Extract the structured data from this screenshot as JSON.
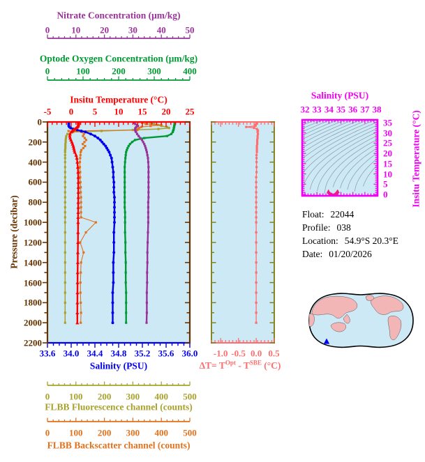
{
  "colors": {
    "plot_background": "#CDE9F6",
    "map_ocean": "#CDE9F6",
    "map_land": "#F2B6B6",
    "map_outline": "#000000",
    "map_marker": "#0000EE",
    "ts_contour": "#8899A6",
    "ts_point": "#EE2277"
  },
  "float_info": {
    "rows": [
      {
        "label": "Float:",
        "value": "22044"
      },
      {
        "label": "Profile:",
        "value": "038"
      },
      {
        "label": "Location:",
        "value": "54.9°S  20.3°E"
      },
      {
        "label": "Date:",
        "value": "01/20/2026"
      }
    ]
  },
  "axes": {
    "nitrate": {
      "title": "Nitrate Concentration (μm/kg)",
      "color": "#993399",
      "min": 0,
      "max": 50,
      "minor_step": 2,
      "tick_values": [
        0,
        10,
        20,
        30,
        40,
        50
      ],
      "tick_labels": [
        "0",
        "10",
        "20",
        "30",
        "40",
        "50"
      ]
    },
    "oxygen": {
      "title": "Optode Oxygen Concentration (μm/kg)",
      "color": "#009933",
      "min": 0,
      "max": 400,
      "minor_step": 20,
      "tick_values": [
        0,
        100,
        200,
        300,
        400
      ],
      "tick_labels": [
        "0",
        "100",
        "200",
        "300",
        "400"
      ]
    },
    "temperature": {
      "title": "Insitu Temperature (°C)",
      "color": "#FF0000",
      "min": -5,
      "max": 25,
      "minor_step": 1,
      "tick_values": [
        -5,
        0,
        5,
        10,
        15,
        20,
        25
      ],
      "tick_labels": [
        "-5",
        "0",
        "5",
        "10",
        "15",
        "20",
        "25"
      ]
    },
    "pressure": {
      "title": "Pressure (decibar)",
      "color": "#663300",
      "min": 0,
      "max": 2200,
      "minor_step": 100,
      "tick_values": [
        0,
        200,
        400,
        600,
        800,
        1000,
        1200,
        1400,
        1600,
        1800,
        2000,
        2200
      ],
      "tick_labels": [
        "0",
        "200",
        "400",
        "600",
        "800",
        "1000",
        "1200",
        "1400",
        "1600",
        "1800",
        "2000",
        "2200"
      ]
    },
    "salinity": {
      "title": "Salinity (PSU)",
      "color": "#0000EE",
      "min": 33.6,
      "max": 36.0,
      "minor_step": 0.1,
      "tick_values": [
        33.6,
        34.0,
        34.4,
        34.8,
        35.2,
        35.6,
        36.0
      ],
      "tick_labels": [
        "33.6",
        "34.0",
        "34.4",
        "34.8",
        "35.2",
        "35.6",
        "36.0"
      ]
    },
    "fluorescence": {
      "title": "FLBB Fluorescence channel (counts)",
      "color": "#A8A22C",
      "min": 0,
      "max": 500,
      "minor_step": 20,
      "tick_values": [
        0,
        100,
        200,
        300,
        400,
        500
      ],
      "tick_labels": [
        "0",
        "100",
        "200",
        "300",
        "400",
        "500"
      ]
    },
    "backscatter": {
      "title": "FLBB Backscatter channel (counts)",
      "color": "#E2711C",
      "min": 0,
      "max": 500,
      "minor_step": 20,
      "tick_values": [
        0,
        100,
        200,
        300,
        400,
        500
      ],
      "tick_labels": [
        "0",
        "100",
        "200",
        "300",
        "400",
        "500"
      ]
    },
    "delta_t": {
      "color": "#FF6E6E",
      "min": -1.26,
      "max": 0.51,
      "minor_step": 0.1,
      "tick_values": [
        -1.0,
        -0.5,
        0.0,
        0.5
      ],
      "tick_labels": [
        "-1.0",
        "-0.5",
        "0.0",
        "0.5"
      ],
      "title_parts": {
        "p1": "ΔT= T",
        "sup1": "Opt",
        "p2": " - T",
        "sup2": "SBE",
        "p3": " (°C)"
      }
    },
    "ts_salinity": {
      "title": "Salinity (PSU)",
      "color": "#F000F0",
      "min": 32,
      "max": 38,
      "minor_step": 0.25,
      "tick_values": [
        32,
        33,
        34,
        35,
        36,
        37,
        38
      ],
      "tick_labels": [
        "32",
        "33",
        "34",
        "35",
        "36",
        "37",
        "38"
      ]
    },
    "ts_temperature": {
      "title": "Insitu Temperature (°C)",
      "color": "#F000F0",
      "min": 0,
      "max": 35,
      "minor_step": 1,
      "tick_values": [
        0,
        5,
        10,
        15,
        20,
        25,
        30,
        35
      ],
      "tick_labels": [
        "0",
        "5",
        "10",
        "15",
        "20",
        "25",
        "30",
        "35"
      ]
    }
  },
  "chart_data": {
    "type": "line",
    "description": "Float vertical profiles plotted against pressure (decibar), plus optode-minus-SBE temperature difference panel and a T-S diagram with isopycnal contours.",
    "pressure_levels": [
      0,
      10,
      20,
      30,
      40,
      50,
      60,
      70,
      80,
      90,
      100,
      120,
      140,
      160,
      180,
      200,
      220,
      240,
      260,
      280,
      300,
      330,
      360,
      400,
      450,
      500,
      550,
      600,
      650,
      700,
      750,
      800,
      850,
      900,
      950,
      1000,
      1100,
      1200,
      1300,
      1400,
      1500,
      1600,
      1700,
      1800,
      1900,
      2000
    ],
    "series": [
      {
        "name": "Insitu Temperature",
        "axis": "temperature",
        "color": "#FF0000",
        "marker": "triangle",
        "lw": 2.4,
        "values": [
          1.55,
          1.55,
          1.55,
          1.52,
          1.45,
          1.3,
          1.05,
          0.75,
          0.45,
          0.2,
          0.0,
          -0.25,
          -0.3,
          -0.2,
          -0.05,
          0.15,
          0.3,
          0.45,
          0.55,
          0.65,
          0.75,
          1.05,
          1.2,
          1.3,
          1.4,
          1.45,
          1.48,
          1.5,
          1.5,
          1.5,
          1.5,
          1.49,
          1.48,
          1.47,
          1.46,
          1.45,
          1.44,
          1.42,
          1.4,
          1.38,
          1.36,
          1.34,
          1.32,
          1.31,
          1.3,
          1.29
        ]
      },
      {
        "name": "Salinity",
        "axis": "salinity",
        "color": "#0000EE",
        "marker": "circle",
        "lw": 2.4,
        "values": [
          33.96,
          33.96,
          33.96,
          33.96,
          33.96,
          33.97,
          33.99,
          34.03,
          34.1,
          34.17,
          34.24,
          34.33,
          34.4,
          34.45,
          34.49,
          34.52,
          34.55,
          34.58,
          34.6,
          34.62,
          34.64,
          34.66,
          34.68,
          34.69,
          34.7,
          34.71,
          34.71,
          34.72,
          34.72,
          34.72,
          34.73,
          34.73,
          34.73,
          34.73,
          34.73,
          34.73,
          34.72,
          34.72,
          34.72,
          34.71,
          34.71,
          34.71,
          34.7,
          34.7,
          34.7,
          34.7
        ]
      },
      {
        "name": "Optode Oxygen Concentration",
        "axis": "oxygen",
        "color": "#009933",
        "marker": "square",
        "lw": 2.4,
        "values": [
          358,
          358,
          357,
          357,
          356,
          356,
          355,
          355,
          354,
          353,
          352,
          348,
          336,
          272,
          246,
          238,
          232,
          228,
          225,
          223,
          221,
          220,
          219,
          218,
          217,
          217,
          217,
          217,
          217,
          217,
          217,
          217,
          217,
          218,
          218,
          218,
          218,
          219,
          219,
          220,
          220,
          220,
          221,
          221,
          221,
          221
        ]
      },
      {
        "name": "Nitrate Concentration",
        "axis": "nitrate",
        "color": "#993399",
        "marker": "square",
        "lw": 2.4,
        "values": [
          30.3,
          30.4,
          30.8,
          31.5,
          31.8,
          31.2,
          30.9,
          30.8,
          30.8,
          30.9,
          31.1,
          31.5,
          32.0,
          32.6,
          33.2,
          33.6,
          34.0,
          34.3,
          34.5,
          34.7,
          34.9,
          35.1,
          35.3,
          35.4,
          35.5,
          35.5,
          35.5,
          35.5,
          35.5,
          35.5,
          35.5,
          35.4,
          35.4,
          35.4,
          35.4,
          35.4,
          35.3,
          35.2,
          35.1,
          35.1,
          35.0,
          35.0,
          34.9,
          34.9,
          34.9,
          34.8
        ]
      },
      {
        "name": "FLBB Fluorescence channel",
        "axis": "fluorescence",
        "color": "#A8A22C",
        "marker": "square",
        "lw": 1.5,
        "values": [
          350,
          362,
          375,
          388,
          400,
          420,
          427,
          390,
          300,
          190,
          90,
          70,
          66,
          65,
          64,
          64,
          63,
          63,
          63,
          62,
          62,
          62,
          62,
          62,
          62,
          62,
          62,
          62,
          62,
          62,
          62,
          62,
          62,
          62,
          62,
          62,
          62,
          62,
          62,
          62,
          62,
          62,
          62,
          62,
          62,
          62
        ]
      },
      {
        "name": "FLBB Backscatter channel",
        "axis": "backscatter",
        "color": "#E2711C",
        "marker": "square",
        "lw": 1.1,
        "values": [
          320,
          332,
          345,
          400,
          362,
          330,
          322,
          318,
          316,
          74,
          120,
          128,
          125,
          131,
          136,
          130,
          124,
          132,
          126,
          119,
          117,
          116,
          115,
          114,
          114,
          115,
          115,
          116,
          117,
          117,
          118,
          118,
          118,
          118,
          118,
          170,
          135,
          115,
          127,
          118,
          117,
          116,
          116,
          117,
          118,
          117
        ]
      }
    ],
    "delta_series": {
      "name": "Delta T (Optode minus SBE)",
      "axis": "delta_t",
      "color": "#FF6E6E",
      "marker": "square",
      "lw": 1.3,
      "values": [
        0.03,
        0.02,
        0.0,
        -0.02,
        -0.04,
        -0.28,
        -0.06,
        0.02,
        0.04,
        0.05,
        0.04,
        0.05,
        0.04,
        0.04,
        0.03,
        0.03,
        0.03,
        0.02,
        0.02,
        0.02,
        0.02,
        0.01,
        0.01,
        0.01,
        0.01,
        0.01,
        0.0,
        0.0,
        0.0,
        0.0,
        0.0,
        0.0,
        0.0,
        0.0,
        0.0,
        0.0,
        0.0,
        0.0,
        0.0,
        0.0,
        0.0,
        0.0,
        0.0,
        0.0,
        0.0,
        0.0
      ]
    },
    "ts_diagram": {
      "points_from": "salinity_and_temperature_series",
      "marker_color": "#EE2277",
      "isopycnals": {
        "min": 20,
        "max": 29.5,
        "step": 0.5
      }
    }
  }
}
